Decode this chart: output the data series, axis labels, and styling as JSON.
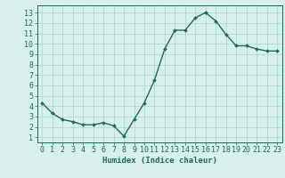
{
  "x": [
    0,
    1,
    2,
    3,
    4,
    5,
    6,
    7,
    8,
    9,
    10,
    11,
    12,
    13,
    14,
    15,
    16,
    17,
    18,
    19,
    20,
    21,
    22,
    23
  ],
  "y": [
    4.3,
    3.3,
    2.7,
    2.5,
    2.2,
    2.2,
    2.4,
    2.1,
    1.1,
    2.7,
    4.3,
    6.5,
    9.5,
    11.3,
    11.3,
    12.5,
    13.0,
    12.2,
    10.9,
    9.8,
    9.8,
    9.5,
    9.3,
    9.3
  ],
  "line_color": "#1a6b5a",
  "marker": "D",
  "marker_size": 2.0,
  "linewidth": 1.0,
  "bg_color": "#d8f0ec",
  "grid_color": "#aad4cc",
  "xlabel": "Humidex (Indice chaleur)",
  "xlabel_fontsize": 6.5,
  "xtick_labels": [
    "0",
    "1",
    "2",
    "3",
    "4",
    "5",
    "6",
    "7",
    "8",
    "9",
    "10",
    "11",
    "12",
    "13",
    "14",
    "15",
    "16",
    "17",
    "18",
    "19",
    "20",
    "21",
    "22",
    "23"
  ],
  "ytick_values": [
    1,
    2,
    3,
    4,
    5,
    6,
    7,
    8,
    9,
    10,
    11,
    12,
    13
  ],
  "ylim": [
    0.5,
    13.7
  ],
  "xlim": [
    -0.5,
    23.5
  ],
  "tick_fontsize": 6.0
}
